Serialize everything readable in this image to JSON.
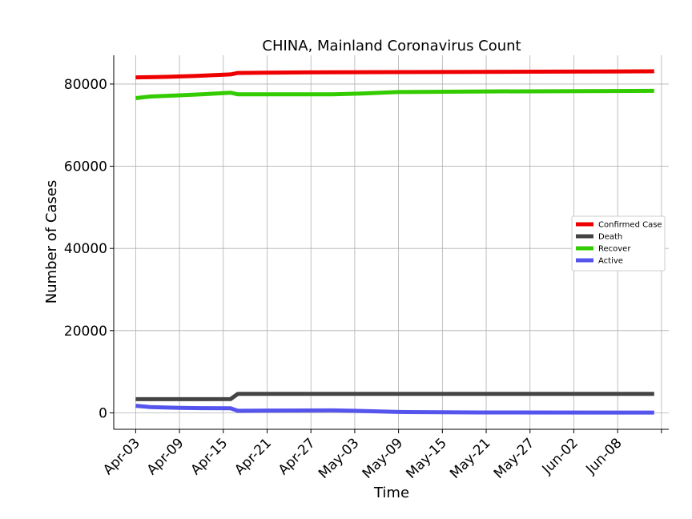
{
  "chart_data": {
    "type": "line",
    "title": "CHINA, Mainland Coronavirus Count",
    "xlabel": "Time",
    "ylabel": "Number of Cases",
    "x_ticks": [
      "Apr-03",
      "Apr-09",
      "Apr-15",
      "Apr-21",
      "Apr-27",
      "May-03",
      "May-09",
      "May-15",
      "May-21",
      "May-27",
      "Jun-02",
      "Jun-08"
    ],
    "x_range": [
      "2020-03-31",
      "2020-06-15"
    ],
    "ylim": [
      -4000,
      87000
    ],
    "y_ticks": [
      0,
      20000,
      40000,
      60000,
      80000
    ],
    "grid": true,
    "legend_position": "center-right",
    "series": [
      {
        "name": "Confirmed Case",
        "color": "#ee0000",
        "points": [
          [
            "2020-04-03",
            81620
          ],
          [
            "2020-04-07",
            81740
          ],
          [
            "2020-04-11",
            81950
          ],
          [
            "2020-04-16",
            82340
          ],
          [
            "2020-04-17",
            82700
          ],
          [
            "2020-04-21",
            82780
          ],
          [
            "2020-04-30",
            82860
          ],
          [
            "2020-05-10",
            82900
          ],
          [
            "2020-05-20",
            82960
          ],
          [
            "2020-06-01",
            83020
          ],
          [
            "2020-06-13",
            83100
          ]
        ]
      },
      {
        "name": "Death",
        "color": "#444444",
        "points": [
          [
            "2020-04-03",
            3320
          ],
          [
            "2020-04-16",
            3340
          ],
          [
            "2020-04-17",
            4636
          ],
          [
            "2020-06-13",
            4634
          ]
        ]
      },
      {
        "name": "Recover",
        "color": "#33cc00",
        "points": [
          [
            "2020-04-03",
            76570
          ],
          [
            "2020-04-05",
            76970
          ],
          [
            "2020-04-09",
            77250
          ],
          [
            "2020-04-12",
            77500
          ],
          [
            "2020-04-16",
            77900
          ],
          [
            "2020-04-17",
            77500
          ],
          [
            "2020-04-30",
            77500
          ],
          [
            "2020-05-04",
            77700
          ],
          [
            "2020-05-09",
            78050
          ],
          [
            "2020-05-20",
            78200
          ],
          [
            "2020-06-13",
            78350
          ]
        ]
      },
      {
        "name": "Active",
        "color": "#5555ee",
        "points": [
          [
            "2020-04-03",
            1730
          ],
          [
            "2020-04-05",
            1400
          ],
          [
            "2020-04-09",
            1200
          ],
          [
            "2020-04-12",
            1150
          ],
          [
            "2020-04-16",
            1100
          ],
          [
            "2020-04-17",
            500
          ],
          [
            "2020-04-21",
            550
          ],
          [
            "2020-04-30",
            600
          ],
          [
            "2020-05-03",
            500
          ],
          [
            "2020-05-09",
            200
          ],
          [
            "2020-05-20",
            100
          ],
          [
            "2020-06-13",
            80
          ]
        ]
      }
    ]
  }
}
